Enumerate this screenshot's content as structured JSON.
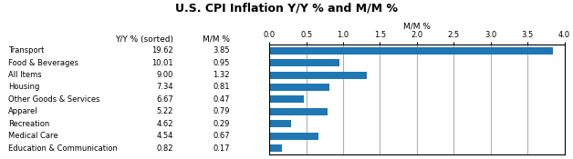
{
  "chart_data": {
    "type": "bar",
    "orientation": "horizontal",
    "title": "U.S. CPI Inflation Y/Y % and M/M %",
    "categories": [
      "Transport",
      "Food & Beverages",
      "All Items",
      "Housing",
      "Other Goods & Services",
      "Apparel",
      "Recreation",
      "Medical Care",
      "Education & Communication"
    ],
    "values": [
      3.85,
      0.95,
      1.32,
      0.81,
      0.47,
      0.79,
      0.29,
      0.67,
      0.17
    ],
    "xlabel": "M/M %",
    "xlim": [
      0.0,
      4.0
    ],
    "xticks": [
      {
        "value": 0.0,
        "label": "0.0"
      },
      {
        "value": 0.5,
        "label": "0.5"
      },
      {
        "value": 1.0,
        "label": "1.0"
      },
      {
        "value": 1.5,
        "label": "1.5"
      },
      {
        "value": 2.0,
        "label": "2.0"
      },
      {
        "value": 2.5,
        "label": "2.5"
      },
      {
        "value": 3.0,
        "label": "3.0"
      },
      {
        "value": 3.5,
        "label": "3.5"
      },
      {
        "value": 4.0,
        "label": "4.0"
      }
    ],
    "grid": true,
    "columns": [
      {
        "name": "Y/Y % (sorted)",
        "values": [
          19.62,
          10.01,
          9.0,
          7.34,
          6.67,
          5.22,
          4.62,
          4.54,
          0.82
        ],
        "value_labels": [
          "19.62",
          "10.01",
          "9.00",
          "7.34",
          "6.67",
          "5.22",
          "4.62",
          "4.54",
          "0.82"
        ]
      },
      {
        "name": "M/M %",
        "values": [
          3.85,
          0.95,
          1.32,
          0.81,
          0.47,
          0.79,
          0.29,
          0.67,
          0.17
        ],
        "value_labels": [
          "3.85",
          "0.95",
          "1.32",
          "0.81",
          "0.47",
          "0.79",
          "0.29",
          "0.67",
          "0.17"
        ]
      }
    ]
  }
}
